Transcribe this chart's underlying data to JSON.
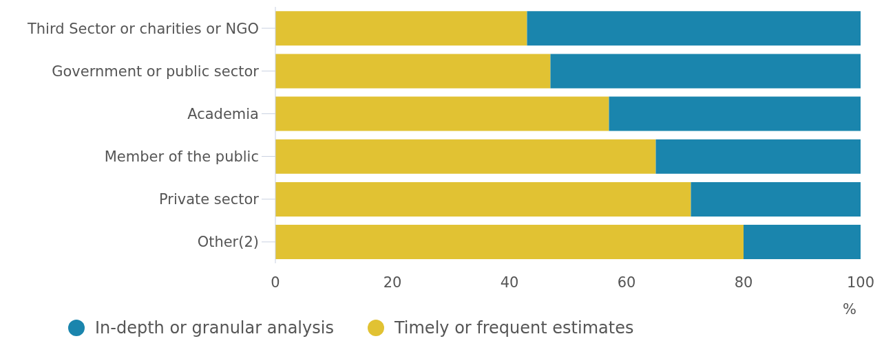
{
  "chart_data": {
    "type": "bar",
    "orientation": "horizontal",
    "stacked": true,
    "xlabel": "%",
    "categories": [
      "Third Sector or charities or NGO",
      "Government or public sector",
      "Academia",
      "Member of the public",
      "Private sector",
      "Other(2)"
    ],
    "series": [
      {
        "name": "Timely or frequent estimates",
        "color": "#e1c233",
        "values": [
          43,
          47,
          57,
          65,
          71,
          80
        ]
      },
      {
        "name": "In-depth or granular analysis",
        "color": "#1a85ad",
        "values": [
          57,
          53,
          43,
          35,
          29,
          20
        ]
      }
    ],
    "xlim": [
      0,
      100
    ],
    "xticks": [
      0,
      20,
      40,
      60,
      80,
      100
    ],
    "grid": false,
    "legend": "bottom left"
  }
}
